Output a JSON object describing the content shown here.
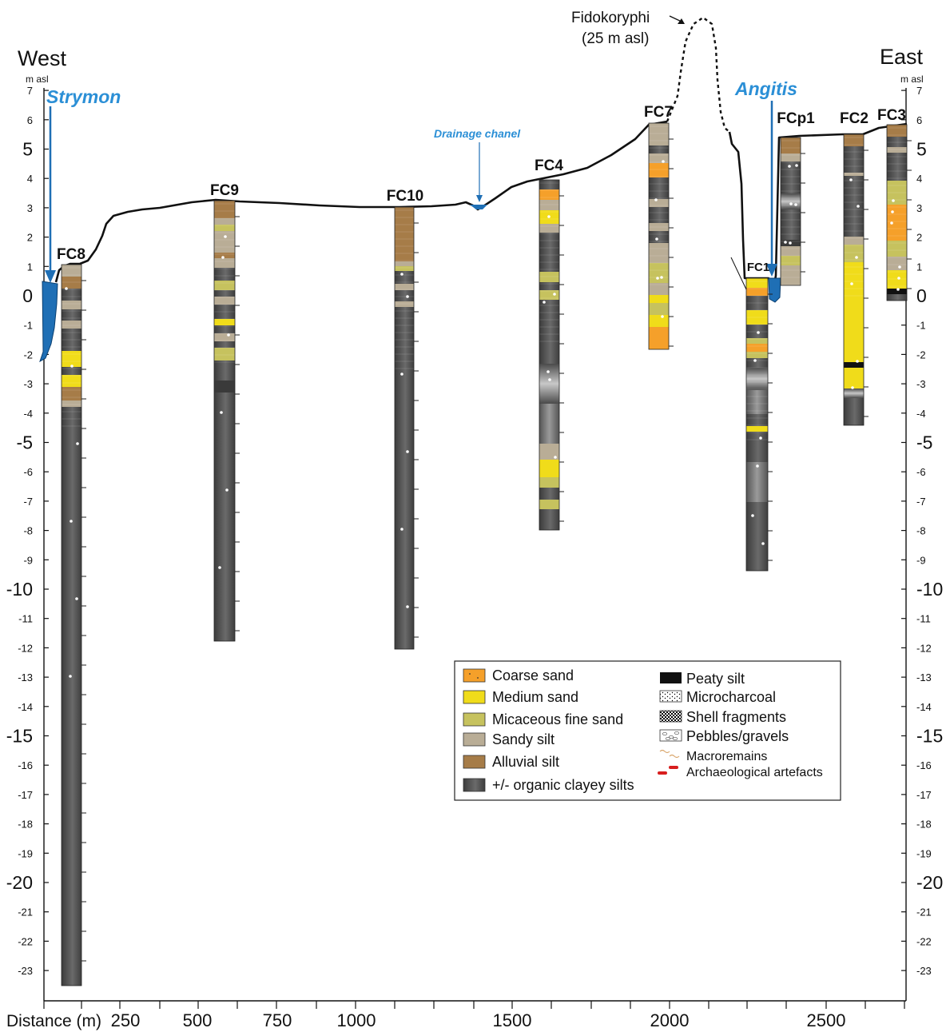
{
  "labels": {
    "west": "West",
    "east": "East",
    "unit_left": "m asl",
    "unit_right": "m asl",
    "strymon": "Strymon",
    "angitis": "Angitis",
    "drainage": "Drainage chanel",
    "peak_name": "Fidokoryphi",
    "peak_elev": "(25 m asl)",
    "distance_label": "Distance (m)"
  },
  "elevation_axis": {
    "ticks": [
      "7",
      "6",
      "5",
      "4",
      "3",
      "2",
      "1",
      "0",
      "-1",
      "-2",
      "-3",
      "-4",
      "-5",
      "-6",
      "-7",
      "-8",
      "-9",
      "-10",
      "-11",
      "-12",
      "-13",
      "-14",
      "-15",
      "-16",
      "-17",
      "-18",
      "-19",
      "-20",
      "-21",
      "-22",
      "-23"
    ],
    "emphasized": [
      "5",
      "0",
      "-5",
      "-10",
      "-15",
      "-20"
    ]
  },
  "distance_axis": {
    "ticks": [
      "250",
      "500",
      "750",
      "1000",
      "1500",
      "2000",
      "2500"
    ]
  },
  "cores": [
    {
      "name": "FC8"
    },
    {
      "name": "FC9"
    },
    {
      "name": "FC10"
    },
    {
      "name": "FC4"
    },
    {
      "name": "FC7"
    },
    {
      "name": "FC1"
    },
    {
      "name": "FCp1"
    },
    {
      "name": "FC2"
    },
    {
      "name": "FC3"
    }
  ],
  "legend": {
    "left": [
      {
        "label": "Coarse sand",
        "color": "#f5a02a"
      },
      {
        "label": "Medium sand",
        "color": "#f0dc1a"
      },
      {
        "label": "Micaceous fine sand",
        "color": "#c6c25e"
      },
      {
        "label": "Sandy silt",
        "color": "#b9ad96"
      },
      {
        "label": "Alluvial silt",
        "color": "#a67c48"
      },
      {
        "label": "+/- organic clayey silts",
        "color": "#4d4d4d"
      }
    ],
    "right": [
      {
        "label": "Peaty silt",
        "icon": "solid-black"
      },
      {
        "label": "Microcharcoal",
        "icon": "dots"
      },
      {
        "label": "Shell fragments",
        "icon": "checker"
      },
      {
        "label": "Pebbles/gravels",
        "icon": "pebbles"
      },
      {
        "label": "Macroremains",
        "icon": "wavy"
      },
      {
        "label": "Archaeological artefacts",
        "icon": "red-bar"
      }
    ]
  },
  "colors": {
    "water": "#1f6fb5",
    "river_label": "#2b8fd6",
    "surface_line": "#111111"
  }
}
